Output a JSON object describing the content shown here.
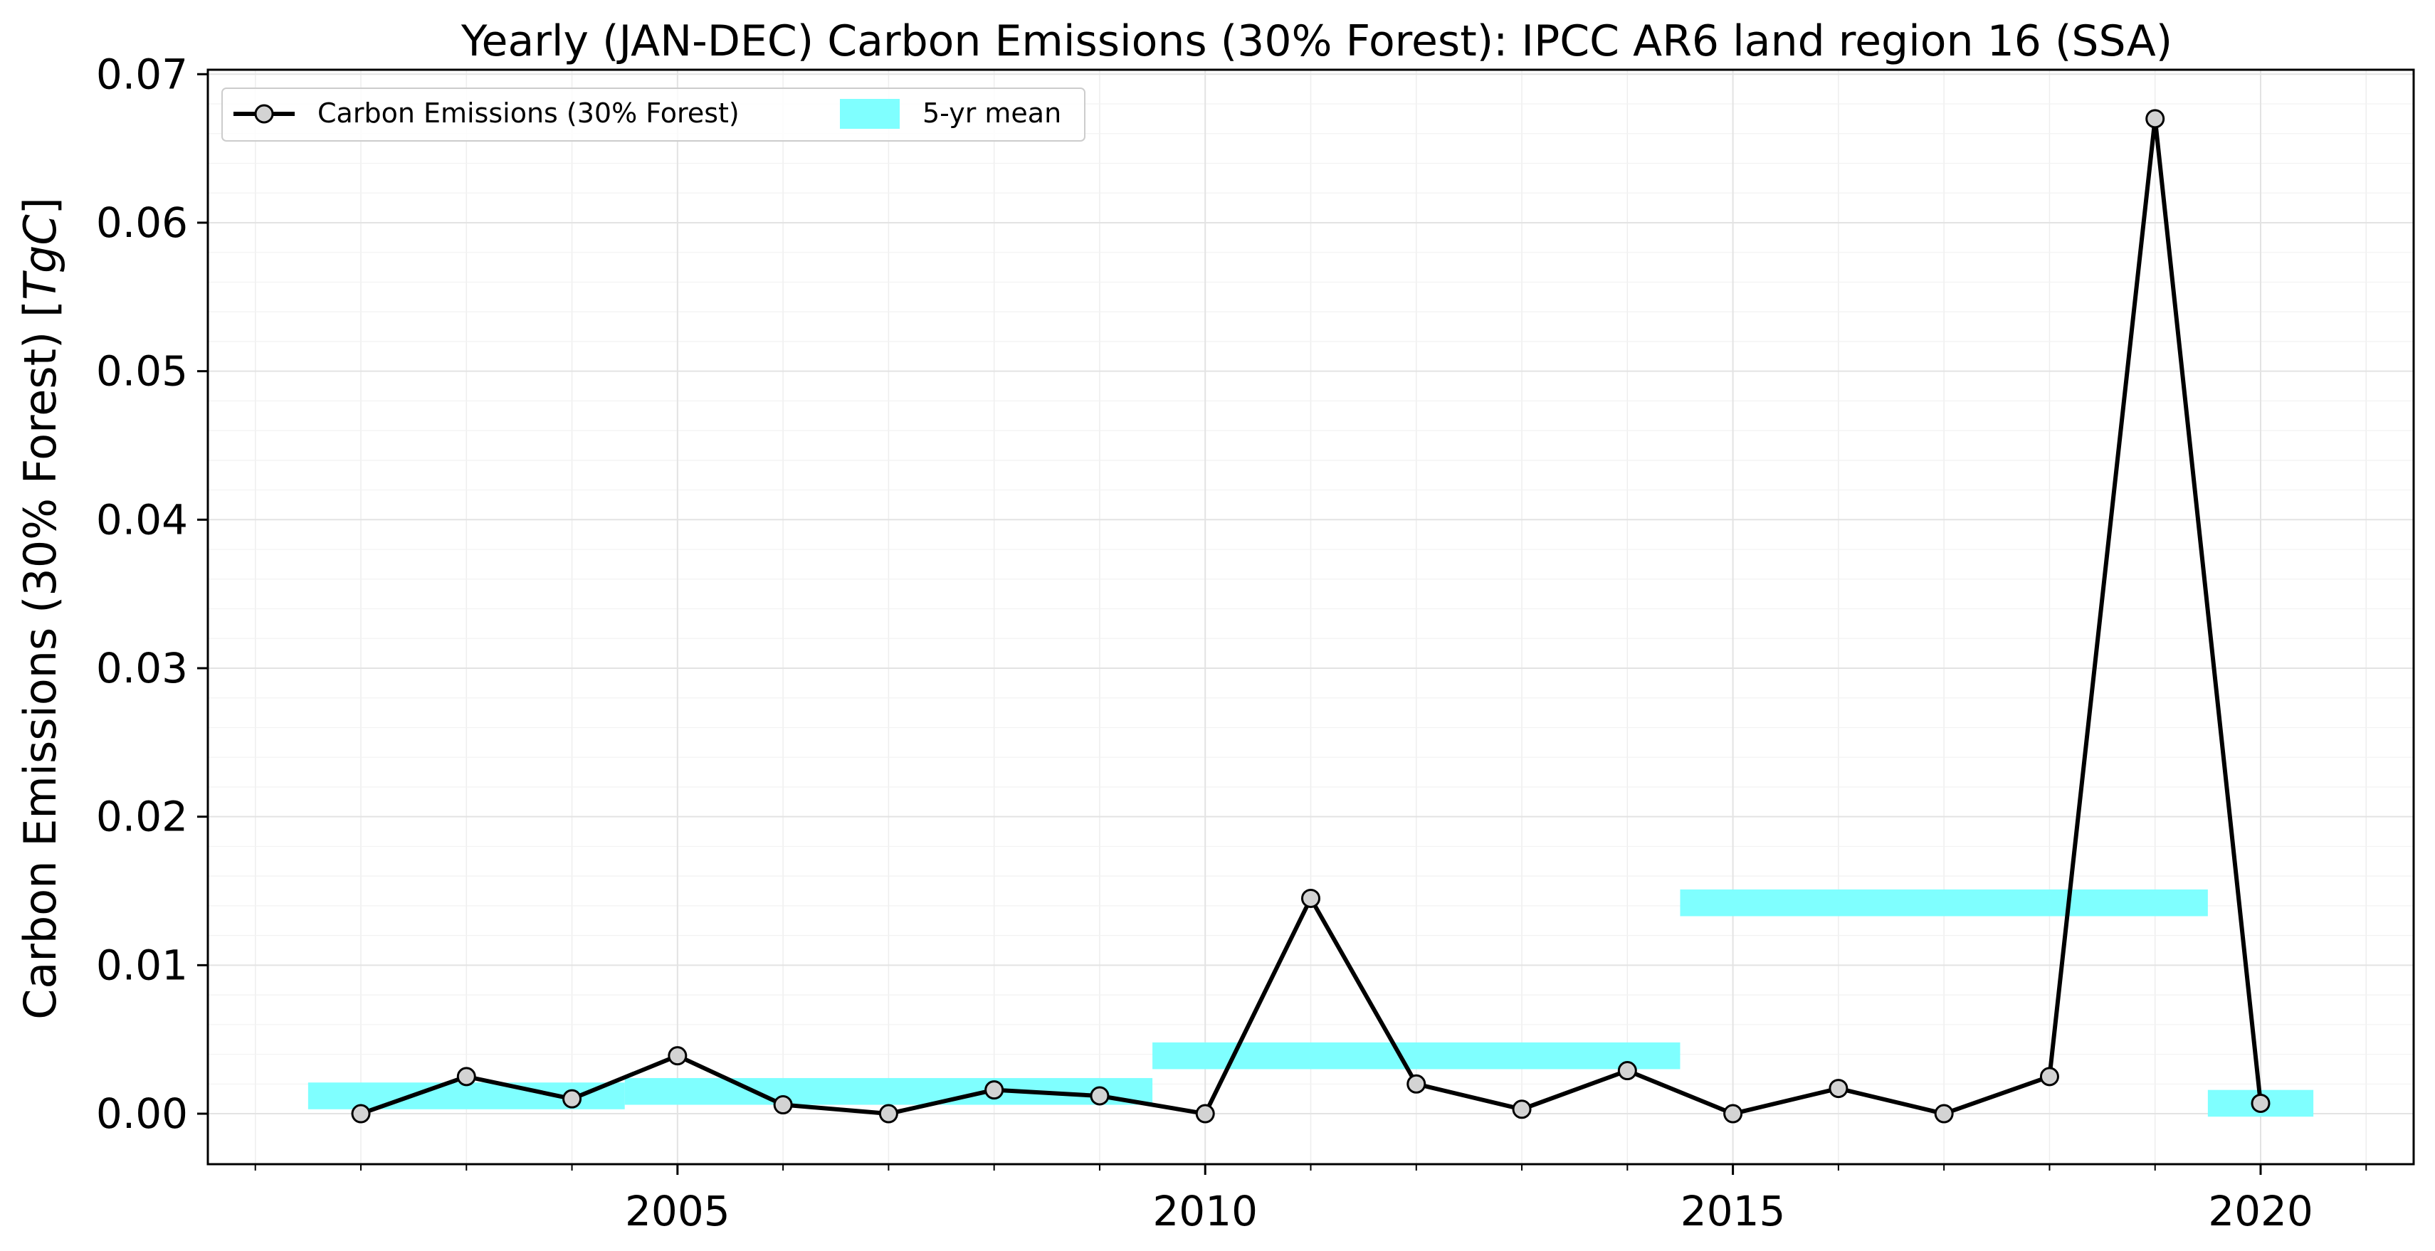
{
  "chart_data": {
    "type": "line",
    "title": "Yearly (JAN-DEC) Carbon Emissions (30% Forest): IPCC AR6 land region 16 (SSA)",
    "xlabel": "",
    "ylabel": "Carbon Emissions (30% Forest) [TgC]",
    "ylabel_text": "Carbon Emissions (30% Forest) [",
    "ylabel_unit": "TgC",
    "ylabel_close": "]",
    "xlim": [
      2000.55,
      2021.45
    ],
    "ylim": [
      -0.0034,
      0.0703
    ],
    "grid": true,
    "legend_position": "top-left",
    "x_ticks": [
      2005,
      2010,
      2015,
      2020
    ],
    "x_tick_labels": [
      "2005",
      "2010",
      "2015",
      "2020"
    ],
    "y_ticks": [
      0.0,
      0.01,
      0.02,
      0.03,
      0.04,
      0.05,
      0.06,
      0.07
    ],
    "y_tick_labels": [
      "0.00",
      "0.01",
      "0.02",
      "0.03",
      "0.04",
      "0.05",
      "0.06",
      "0.07"
    ],
    "series": [
      {
        "name": "Carbon Emissions (30% Forest)",
        "kind": "line-markers",
        "color": "#000000",
        "marker_fill": "#d3d3d3",
        "x": [
          2002,
          2003,
          2004,
          2005,
          2006,
          2007,
          2008,
          2009,
          2010,
          2011,
          2012,
          2013,
          2014,
          2015,
          2016,
          2017,
          2018,
          2019,
          2020
        ],
        "y": [
          0.0,
          0.0025,
          0.001,
          0.0039,
          0.0006,
          0.0,
          0.0016,
          0.0012,
          0.0,
          0.0145,
          0.002,
          0.0003,
          0.0029,
          0.0,
          0.0017,
          0.0,
          0.0025,
          0.067,
          0.0007
        ]
      },
      {
        "name": "5-yr mean",
        "kind": "band",
        "color": "#7fffff",
        "bands": [
          {
            "x_start": 2001.5,
            "x_end": 2004.5,
            "y": 0.0012
          },
          {
            "x_start": 2004.5,
            "x_end": 2009.5,
            "y": 0.0015
          },
          {
            "x_start": 2009.5,
            "x_end": 2014.5,
            "y": 0.0039
          },
          {
            "x_start": 2014.5,
            "x_end": 2019.5,
            "y": 0.0142
          },
          {
            "x_start": 2019.5,
            "x_end": 2020.5,
            "y": 0.0007
          }
        ]
      }
    ]
  }
}
